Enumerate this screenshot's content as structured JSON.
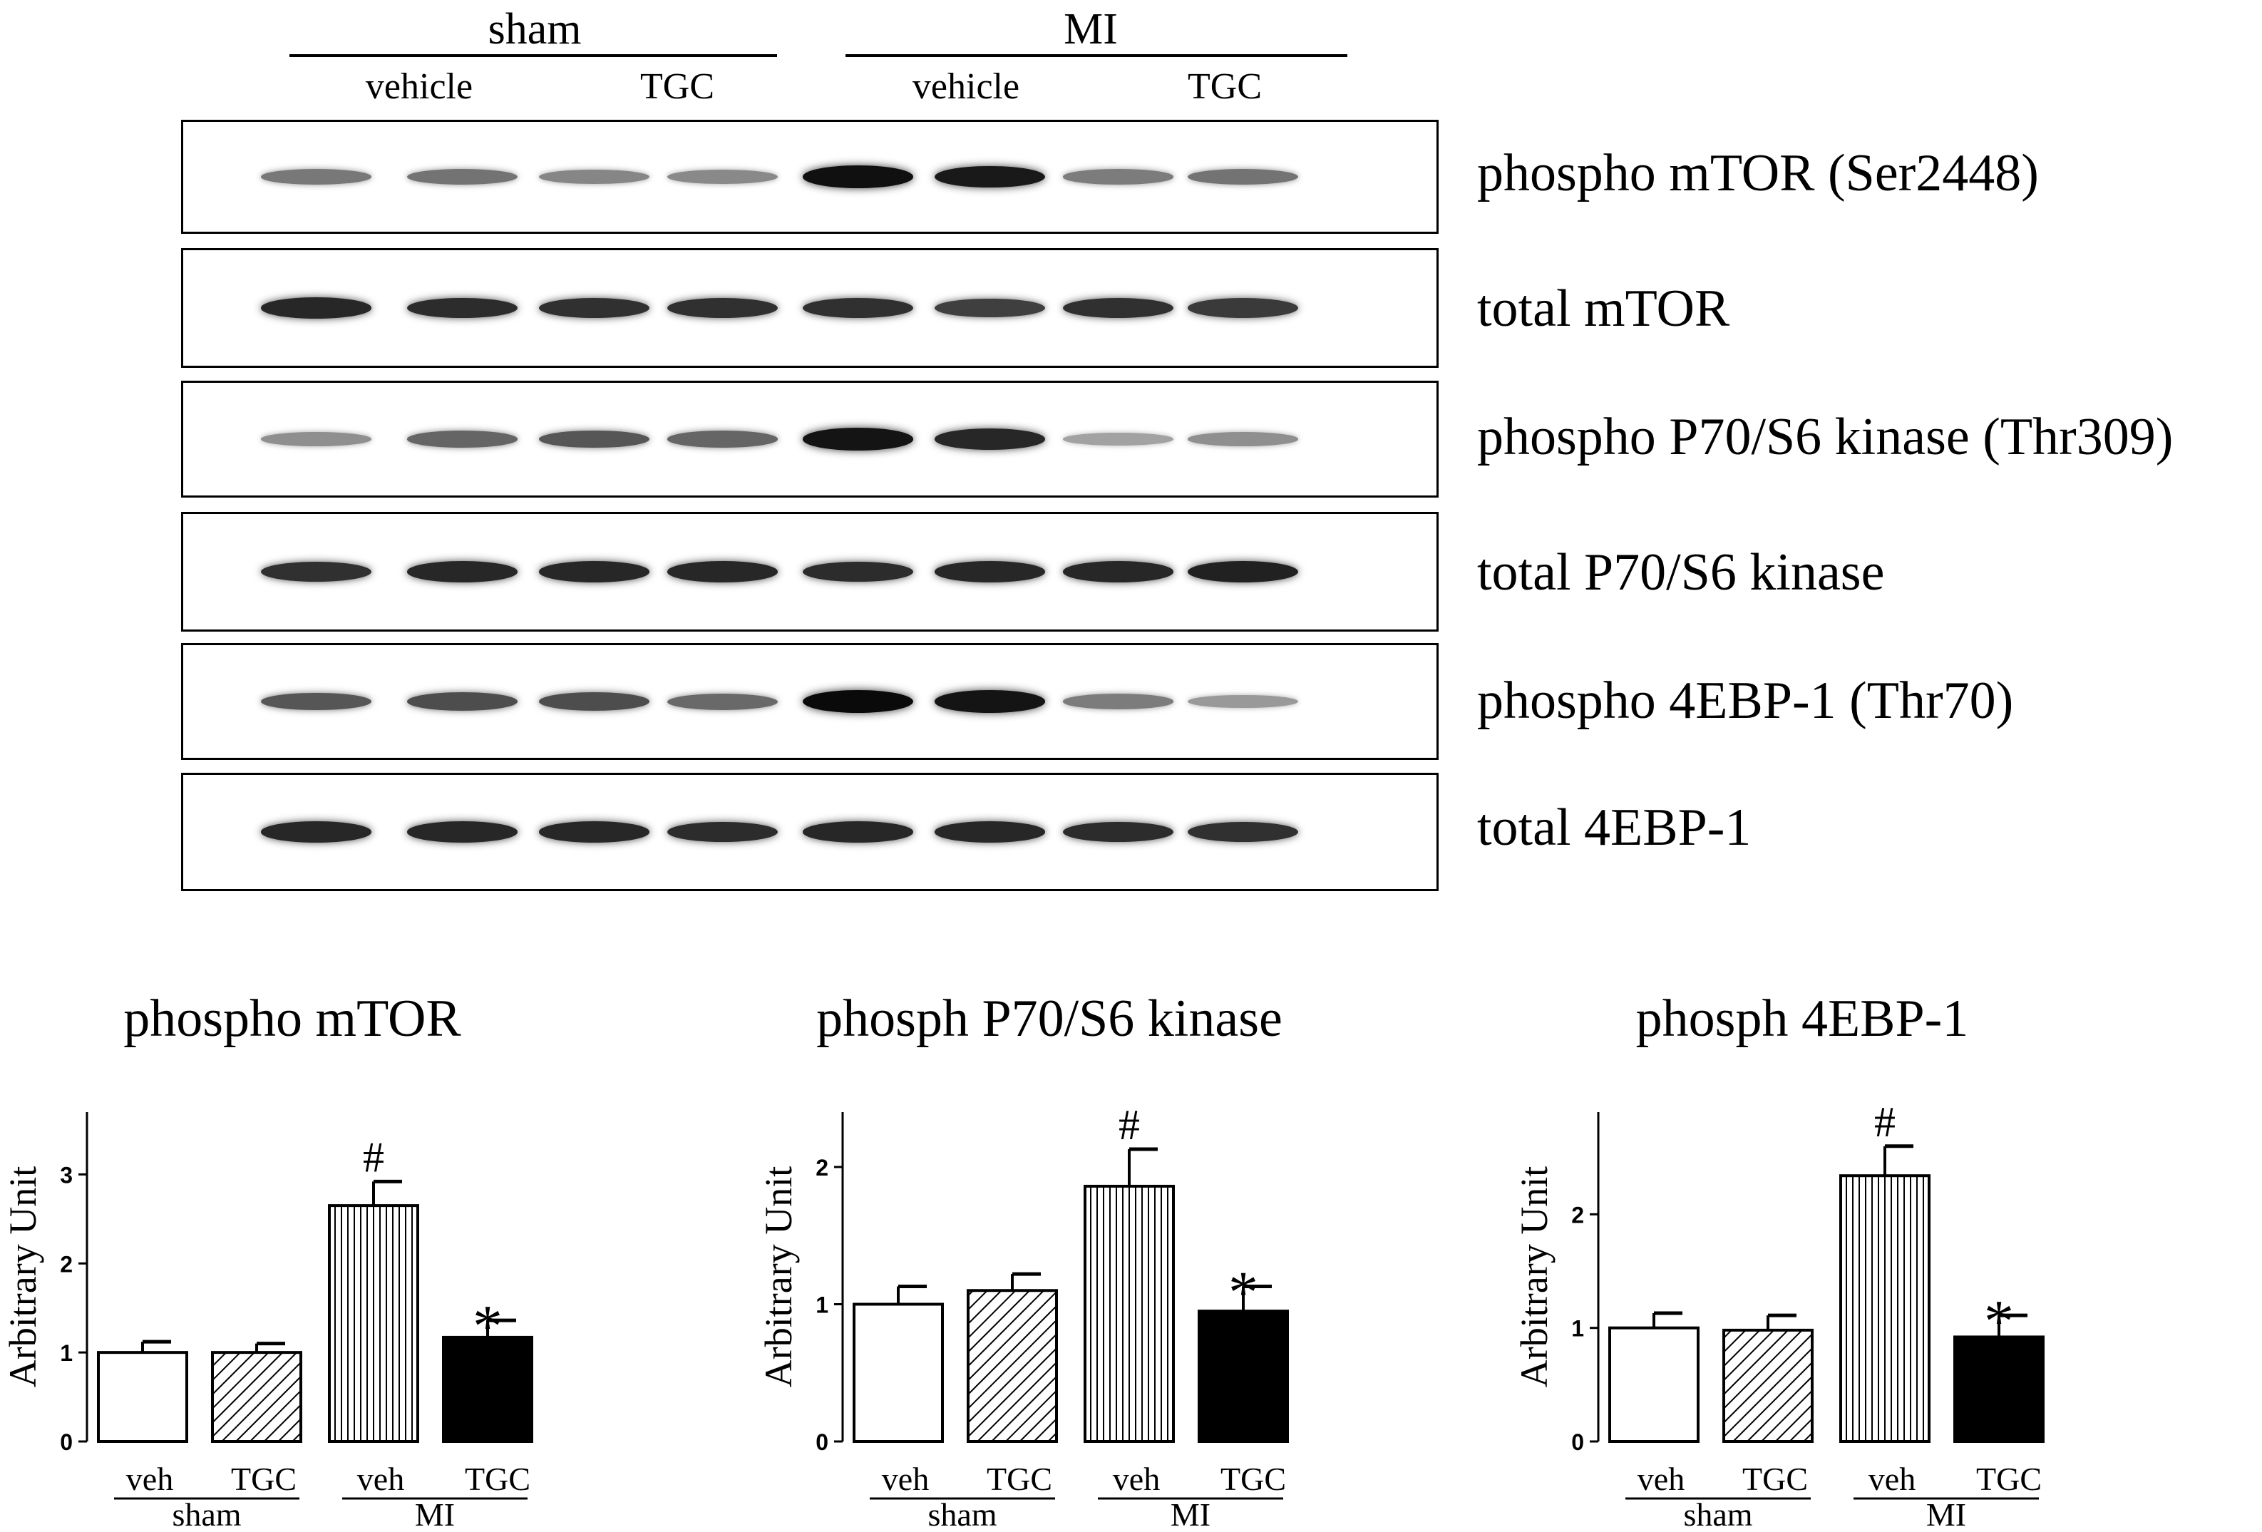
{
  "blot": {
    "groups": [
      "sham",
      "MI"
    ],
    "conditions": [
      "vehicle",
      "TGC",
      "vehicle",
      "TGC"
    ],
    "rows": [
      {
        "label": "phospho mTOR (Ser2448)",
        "intensities": [
          0.42,
          0.45,
          0.35,
          0.33,
          0.97,
          0.92,
          0.4,
          0.45
        ]
      },
      {
        "label": "total mTOR",
        "intensities": [
          0.85,
          0.82,
          0.8,
          0.8,
          0.8,
          0.72,
          0.8,
          0.75
        ]
      },
      {
        "label": "phospho P70/S6 kinase (Thr309)",
        "intensities": [
          0.3,
          0.52,
          0.6,
          0.52,
          0.95,
          0.85,
          0.2,
          0.3
        ]
      },
      {
        "label": "total P70/S6 kinase",
        "intensities": [
          0.8,
          0.85,
          0.85,
          0.85,
          0.82,
          0.85,
          0.85,
          0.88
        ]
      },
      {
        "label": "phospho 4EBP-1 (Thr70)",
        "intensities": [
          0.6,
          0.65,
          0.65,
          0.5,
          1.0,
          0.95,
          0.4,
          0.25
        ]
      },
      {
        "label": "total 4EBP-1",
        "intensities": [
          0.85,
          0.85,
          0.85,
          0.82,
          0.85,
          0.85,
          0.82,
          0.8
        ]
      }
    ]
  },
  "chart_data": [
    {
      "type": "bar",
      "title": "phospho mTOR",
      "ylabel": "Arbitrary Unit",
      "categories": [
        "veh",
        "TGC",
        "veh",
        "TGC"
      ],
      "groups": [
        "sham",
        "MI"
      ],
      "values": [
        1.0,
        1.0,
        2.65,
        1.17
      ],
      "errors": [
        0.12,
        0.1,
        0.27,
        0.19
      ],
      "fills": [
        "white",
        "diagonal",
        "vertical",
        "black"
      ],
      "annotations": [
        "",
        "",
        "#",
        "*"
      ],
      "ylim": [
        0,
        3.7
      ],
      "yticks": [
        0,
        1,
        2,
        3
      ]
    },
    {
      "type": "bar",
      "title": "phosph P70/S6 kinase",
      "ylabel": "Arbitrary Unit",
      "categories": [
        "veh",
        "TGC",
        "veh",
        "TGC"
      ],
      "groups": [
        "sham",
        "MI"
      ],
      "values": [
        1.0,
        1.1,
        1.86,
        0.95
      ],
      "errors": [
        0.13,
        0.12,
        0.27,
        0.18
      ],
      "fills": [
        "white",
        "diagonal",
        "vertical",
        "black"
      ],
      "annotations": [
        "",
        "",
        "#",
        "*"
      ],
      "ylim": [
        0,
        2.4
      ],
      "yticks": [
        0,
        1,
        2
      ]
    },
    {
      "type": "bar",
      "title": "phosph 4EBP-1",
      "ylabel": "Arbitrary Unit",
      "categories": [
        "veh",
        "TGC",
        "veh",
        "TGC"
      ],
      "groups": [
        "sham",
        "MI"
      ],
      "values": [
        1.0,
        0.98,
        2.34,
        0.92
      ],
      "errors": [
        0.13,
        0.13,
        0.26,
        0.19
      ],
      "fills": [
        "white",
        "diagonal",
        "vertical",
        "black"
      ],
      "annotations": [
        "",
        "",
        "#",
        "*"
      ],
      "ylim": [
        0,
        2.9
      ],
      "yticks": [
        0,
        1,
        2
      ]
    }
  ]
}
